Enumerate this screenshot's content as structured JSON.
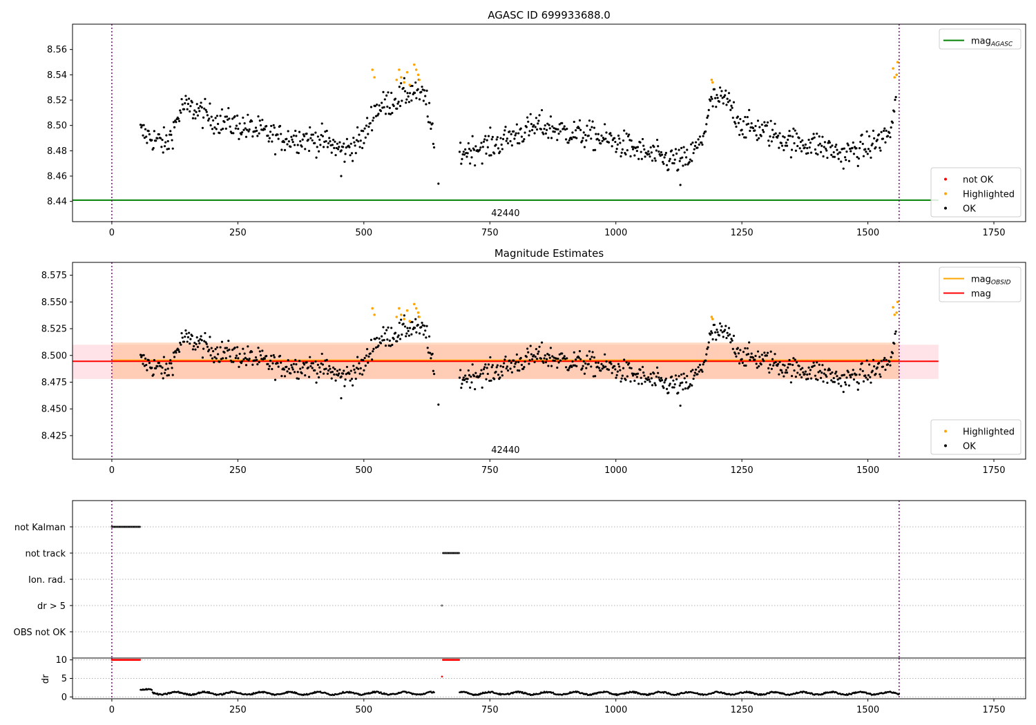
{
  "chart_data": [
    {
      "type": "scatter",
      "title": "AGASC ID 699933688.0",
      "xlim": [
        -78,
        1813
      ],
      "ylim": [
        8.424,
        8.58
      ],
      "xticks": [
        0,
        250,
        500,
        750,
        1000,
        1250,
        1500,
        1750
      ],
      "yticks": [
        8.44,
        8.46,
        8.48,
        8.5,
        8.52,
        8.54,
        8.56
      ],
      "ytick_decimals": 2,
      "vlines": [
        0,
        1562
      ],
      "hline": {
        "name": "mag_AGASC",
        "value": 8.441,
        "color": "#008000"
      },
      "annotation": {
        "text": "42440",
        "x": 781,
        "y": 8.431
      },
      "segments": [
        [
          57,
          640,
          0.01
        ],
        [
          690,
          1557,
          0.01
        ]
      ],
      "trend": [
        [
          57,
          8.495
        ],
        [
          80,
          8.49
        ],
        [
          110,
          8.485
        ],
        [
          140,
          8.515
        ],
        [
          170,
          8.512
        ],
        [
          200,
          8.505
        ],
        [
          250,
          8.5
        ],
        [
          290,
          8.496
        ],
        [
          330,
          8.49
        ],
        [
          380,
          8.49
        ],
        [
          420,
          8.488
        ],
        [
          460,
          8.48
        ],
        [
          500,
          8.49
        ],
        [
          520,
          8.512
        ],
        [
          560,
          8.52
        ],
        [
          600,
          8.528
        ],
        [
          625,
          8.52
        ],
        [
          640,
          8.48
        ],
        [
          690,
          8.478
        ],
        [
          720,
          8.482
        ],
        [
          760,
          8.485
        ],
        [
          800,
          8.493
        ],
        [
          850,
          8.5
        ],
        [
          900,
          8.495
        ],
        [
          950,
          8.492
        ],
        [
          1000,
          8.487
        ],
        [
          1060,
          8.478
        ],
        [
          1100,
          8.473
        ],
        [
          1140,
          8.472
        ],
        [
          1170,
          8.487
        ],
        [
          1190,
          8.52
        ],
        [
          1220,
          8.52
        ],
        [
          1250,
          8.5
        ],
        [
          1300,
          8.495
        ],
        [
          1350,
          8.487
        ],
        [
          1400,
          8.485
        ],
        [
          1450,
          8.477
        ],
        [
          1500,
          8.483
        ],
        [
          1530,
          8.49
        ],
        [
          1545,
          8.495
        ],
        [
          1557,
          8.52
        ]
      ],
      "highlighted": [
        [
          517,
          8.544
        ],
        [
          521,
          8.538
        ],
        [
          565,
          8.536
        ],
        [
          570,
          8.544
        ],
        [
          574,
          8.538
        ],
        [
          580,
          8.534
        ],
        [
          586,
          8.542
        ],
        [
          591,
          8.532
        ],
        [
          600,
          8.548
        ],
        [
          604,
          8.544
        ],
        [
          608,
          8.54
        ],
        [
          610,
          8.536
        ],
        [
          1190,
          8.536
        ],
        [
          1192,
          8.534
        ],
        [
          1550,
          8.545
        ],
        [
          1553,
          8.538
        ],
        [
          1557,
          8.54
        ],
        [
          1559,
          8.55
        ]
      ],
      "legends": [
        {
          "position": "upper-right",
          "entries": [
            {
              "label": "mag",
              "sub": "AGASC",
              "color": "#008000",
              "kind": "line"
            }
          ]
        },
        {
          "position": "lower-right",
          "entries": [
            {
              "label": "not OK",
              "color": "#ff0000",
              "kind": "dot"
            },
            {
              "label": "Highlighted",
              "color": "#ffa500",
              "kind": "dot"
            },
            {
              "label": "OK",
              "color": "#000000",
              "kind": "dot"
            }
          ]
        }
      ]
    },
    {
      "type": "scatter",
      "title": "Magnitude Estimates",
      "xlim": [
        -78,
        1813
      ],
      "ylim": [
        8.403,
        8.587
      ],
      "xticks": [
        0,
        250,
        500,
        750,
        1000,
        1250,
        1500,
        1750
      ],
      "yticks": [
        8.425,
        8.45,
        8.475,
        8.5,
        8.525,
        8.55,
        8.575
      ],
      "ytick_decimals": 3,
      "vlines": [
        0,
        1562
      ],
      "bands": [
        {
          "x": [
            -78,
            1640
          ],
          "y": [
            8.478,
            8.51
          ],
          "color": "#ffc0cb",
          "opacity": 0.45
        },
        {
          "x": [
            0,
            1562
          ],
          "y": [
            8.478,
            8.512
          ],
          "color": "#ffb07a",
          "opacity": 0.45
        }
      ],
      "hlines": [
        {
          "name": "mag_OBSID",
          "value": 8.4955,
          "x": [
            0,
            1562
          ],
          "color": "#ffa500"
        },
        {
          "name": "mag",
          "value": 8.4945,
          "x": [
            -78,
            1640
          ],
          "color": "#ff0000"
        }
      ],
      "annotation": {
        "text": "42440",
        "x": 781,
        "y": 8.412
      },
      "legends": [
        {
          "position": "upper-right",
          "entries": [
            {
              "label": "mag",
              "sub": "OBSID",
              "color": "#ffa500",
              "kind": "line"
            },
            {
              "label": "mag",
              "color": "#ff0000",
              "kind": "line"
            }
          ]
        },
        {
          "position": "lower-right",
          "entries": [
            {
              "label": "Highlighted",
              "color": "#ffa500",
              "kind": "dot"
            },
            {
              "label": "OK",
              "color": "#000000",
              "kind": "dot"
            }
          ]
        }
      ]
    },
    {
      "type": "scatter",
      "title": "",
      "xlim": [
        -78,
        1813
      ],
      "ylabels": [
        "not Kalman",
        "not track",
        "Ion. rad.",
        "dr > 5",
        "OBS not OK"
      ],
      "flags": [
        {
          "row": "not Kalman",
          "x": [
            0,
            57
          ]
        },
        {
          "row": "not track",
          "x": [
            657,
            690
          ]
        },
        {
          "row": "dr > 5",
          "x": [
            655,
            656
          ]
        }
      ],
      "vlines": [
        0,
        1562
      ]
    },
    {
      "type": "scatter",
      "title": "",
      "ylabel": "dr",
      "xlim": [
        -78,
        1813
      ],
      "ylim": [
        -0.5,
        10.5
      ],
      "xticks": [
        0,
        250,
        500,
        750,
        1000,
        1250,
        1500,
        1750
      ],
      "yticks": [
        0,
        5,
        10
      ],
      "vlines": [
        0,
        1562
      ],
      "clipped": [
        {
          "x": [
            0,
            57
          ]
        },
        {
          "x": [
            657,
            690
          ]
        }
      ],
      "outlier": [
        655,
        5.5
      ],
      "segments": [
        [
          57,
          640
        ],
        [
          690,
          1562
        ]
      ]
    }
  ]
}
